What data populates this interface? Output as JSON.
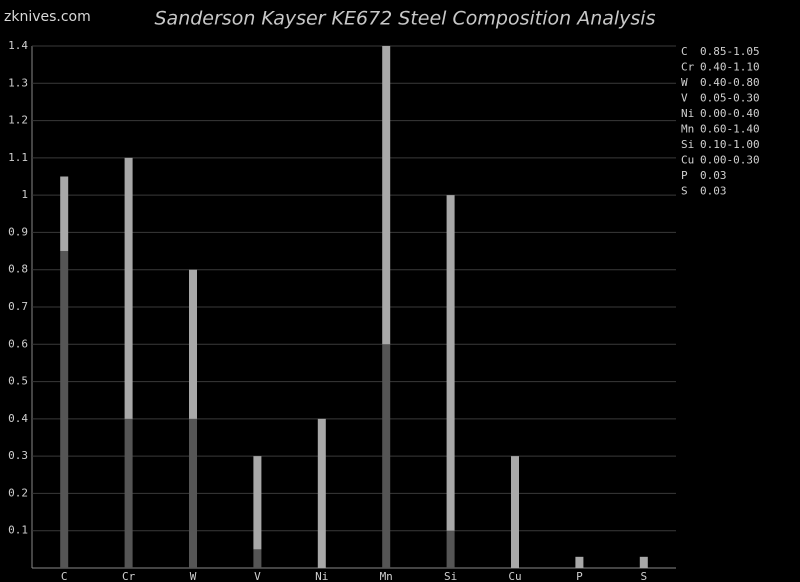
{
  "watermark": "zknives.com",
  "chart_data": {
    "type": "range-bar",
    "title": "Sanderson Kayser KE672 Steel Composition Analysis",
    "categories": [
      "C",
      "Cr",
      "W",
      "V",
      "Ni",
      "Mn",
      "Si",
      "Cu",
      "P",
      "S"
    ],
    "series": [
      {
        "name": "Min",
        "color": "#555555",
        "values": [
          0.85,
          0.4,
          0.4,
          0.05,
          0,
          0.6,
          0.1,
          0,
          null,
          null
        ]
      },
      {
        "name": "Max",
        "color": "#a8a8a8",
        "values": [
          1.05,
          1.1,
          0.8,
          0.3,
          0.4,
          1.4,
          1.0,
          0.3,
          0.03,
          0.03
        ]
      }
    ],
    "range_labels": [
      "0.85-1.05",
      "0.40-1.10",
      "0.40-0.80",
      "0.05-0.30",
      "0.00-0.40",
      "0.60-1.40",
      "0.10-1.00",
      "0.00-0.30",
      "0.03",
      "0.03"
    ],
    "ylim": [
      0,
      1.4
    ],
    "yticks": [
      0.1,
      0.2,
      0.3,
      0.4,
      0.5,
      0.6,
      0.7,
      0.8,
      0.9,
      1,
      1.1,
      1.2,
      1.3,
      1.4
    ],
    "grid": true
  }
}
